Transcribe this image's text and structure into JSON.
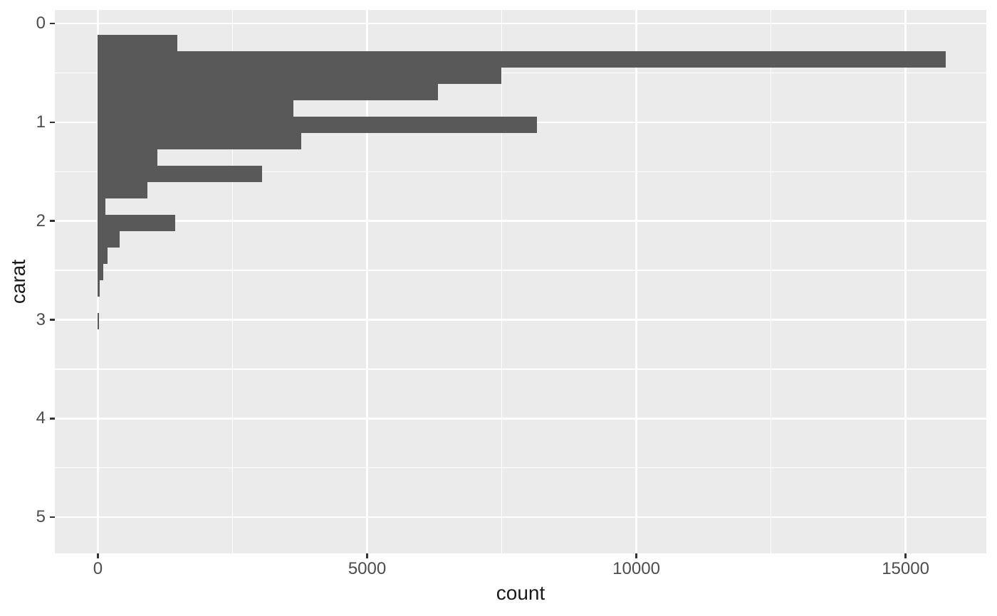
{
  "figure": {
    "background_color": "#FFFFFF",
    "panel_background_color": "#EBEBEB",
    "gridline_color": "#FFFFFF",
    "bar_color": "#595959",
    "tick_mark_color": "#333333",
    "tick_label_color": "#4D4D4D",
    "axis_title_color": "#1A1A1A"
  },
  "chart_data": {
    "type": "bar",
    "subtype": "histogram",
    "orientation": "horizontal",
    "title": "",
    "xlabel": "count",
    "ylabel": "carat",
    "x_axis": {
      "ticks": [
        0,
        5000,
        10000,
        15000
      ],
      "tick_labels": [
        "0",
        "5000",
        "10000",
        "15000"
      ],
      "minor_ticks": [
        2500,
        7500,
        12500
      ],
      "range": [
        -800,
        16500
      ],
      "grid": true
    },
    "y_axis": {
      "ticks": [
        0,
        1,
        2,
        3,
        4,
        5
      ],
      "tick_labels": [
        "0",
        "1",
        "2",
        "3",
        "4",
        "5"
      ],
      "minor_ticks": [
        0.5,
        1.5,
        2.5,
        3.5,
        4.5
      ],
      "range": [
        -0.137,
        5.366
      ],
      "reversed": true,
      "grid": true
    },
    "bins": {
      "start_carat": 0.117,
      "bin_width_carat": 0.1657,
      "note": "histogram of carat; bars run horizontally as counts"
    },
    "series": [
      {
        "name": "count",
        "bin_centers": [
          0.2,
          0.37,
          0.53,
          0.7,
          0.86,
          1.03,
          1.19,
          1.36,
          1.53,
          1.69,
          1.86,
          2.02,
          2.19,
          2.35,
          2.52,
          2.69,
          2.85,
          3.02
        ],
        "values": [
          1470,
          15740,
          7490,
          6320,
          3630,
          8160,
          3780,
          1100,
          3050,
          925,
          140,
          1430,
          410,
          180,
          105,
          35,
          0,
          25
        ]
      }
    ],
    "legend": null
  }
}
